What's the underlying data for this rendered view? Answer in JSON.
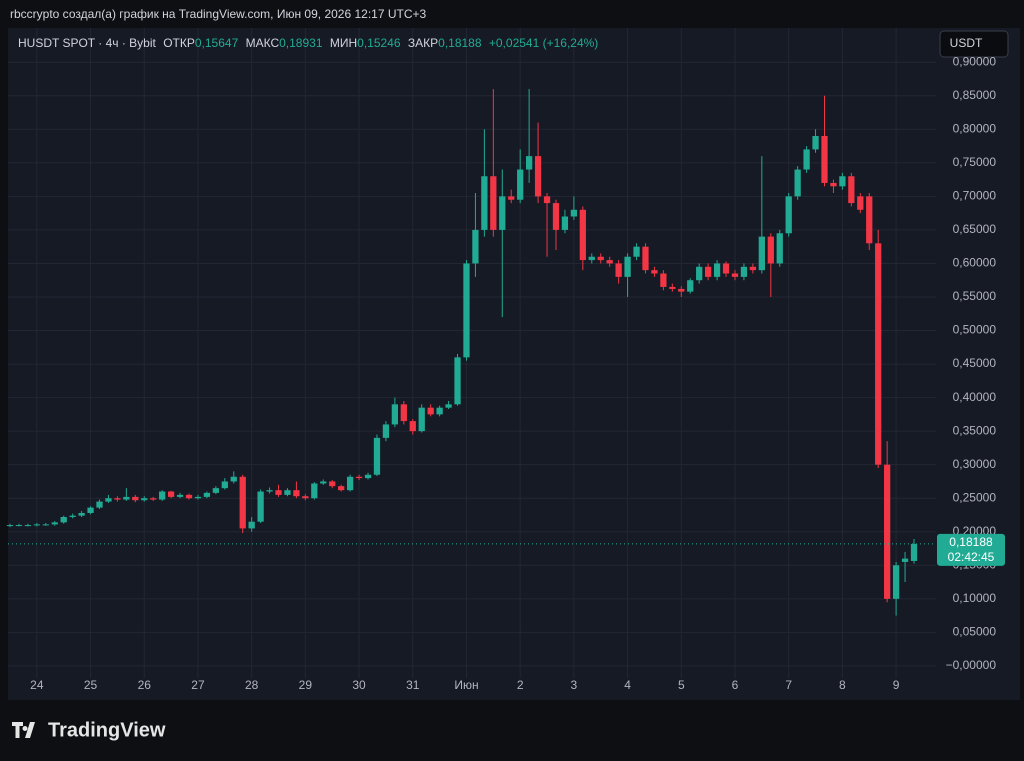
{
  "header": {
    "author_line": "rbccrypto создал(а) график на TradingView.com, Июн 09, 2026 12:17 UTC+3",
    "symbol": "HUSDT SPOT · 4ч · Bybit",
    "open_label": "ОТКР",
    "open_value": "0,15647",
    "high_label": "МАКС",
    "high_value": "0,18931",
    "low_label": "МИН",
    "low_value": "0,15246",
    "close_label": "ЗАКР",
    "close_value": "0,18188",
    "change": "+0,02541 (+16,24%)",
    "currency": "USDT"
  },
  "footer": {
    "logo": "TradingView"
  },
  "chart_data": {
    "type": "candlestick",
    "up_color": "#22ab94",
    "down_color": "#f23645",
    "grid": true,
    "categories": [
      null,
      null,
      null,
      "24",
      null,
      null,
      null,
      null,
      null,
      "25",
      null,
      null,
      null,
      null,
      null,
      "26",
      null,
      null,
      null,
      null,
      null,
      "27",
      null,
      null,
      null,
      null,
      null,
      "28",
      null,
      null,
      null,
      null,
      null,
      "29",
      null,
      null,
      null,
      null,
      null,
      "30",
      null,
      null,
      null,
      null,
      null,
      "31",
      null,
      null,
      null,
      null,
      null,
      "Июн",
      null,
      null,
      null,
      null,
      null,
      "2",
      null,
      null,
      null,
      null,
      null,
      "3",
      null,
      null,
      null,
      null,
      null,
      "4",
      null,
      null,
      null,
      null,
      null,
      "5",
      null,
      null,
      null,
      null,
      null,
      "6",
      null,
      null,
      null,
      null,
      null,
      "7",
      null,
      null,
      null,
      null,
      null,
      "8",
      null,
      null,
      null,
      null,
      null,
      "9",
      null,
      null
    ],
    "open": [
      0.209,
      0.21,
      0.21,
      0.21,
      0.211,
      0.211,
      0.214,
      0.222,
      0.224,
      0.228,
      0.236,
      0.245,
      0.25,
      0.248,
      0.252,
      0.247,
      0.25,
      0.248,
      0.26,
      0.252,
      0.255,
      0.25,
      0.252,
      0.258,
      0.265,
      0.275,
      0.282,
      0.205,
      0.215,
      0.26,
      0.262,
      0.255,
      0.262,
      0.253,
      0.25,
      0.272,
      0.275,
      0.268,
      0.262,
      0.282,
      0.28,
      0.285,
      0.34,
      0.36,
      0.39,
      0.365,
      0.35,
      0.385,
      0.375,
      0.385,
      0.39,
      0.46,
      0.6,
      0.65,
      0.73,
      0.65,
      0.7,
      0.695,
      0.74,
      0.76,
      0.7,
      0.69,
      0.65,
      0.67,
      0.68,
      0.605,
      0.61,
      0.605,
      0.6,
      0.58,
      0.61,
      0.625,
      0.59,
      0.585,
      0.565,
      0.562,
      0.558,
      0.575,
      0.595,
      0.58,
      0.6,
      0.585,
      0.58,
      0.595,
      0.59,
      0.64,
      0.6,
      0.645,
      0.7,
      0.74,
      0.77,
      0.79,
      0.72,
      0.715,
      0.73,
      0.7,
      0.7,
      0.63,
      0.3,
      0.1,
      0.155,
      0.15647
    ],
    "high": [
      0.212,
      0.212,
      0.212,
      0.213,
      0.213,
      0.216,
      0.224,
      0.227,
      0.231,
      0.238,
      0.248,
      0.255,
      0.253,
      0.265,
      0.255,
      0.253,
      0.252,
      0.262,
      0.261,
      0.258,
      0.257,
      0.255,
      0.26,
      0.268,
      0.28,
      0.29,
      0.285,
      0.222,
      0.263,
      0.266,
      0.27,
      0.265,
      0.275,
      0.256,
      0.274,
      0.278,
      0.277,
      0.27,
      0.285,
      0.285,
      0.288,
      0.345,
      0.365,
      0.4,
      0.395,
      0.368,
      0.39,
      0.39,
      0.388,
      0.395,
      0.465,
      0.605,
      0.705,
      0.8,
      0.86,
      0.74,
      0.71,
      0.77,
      0.86,
      0.81,
      0.705,
      0.695,
      0.68,
      0.7,
      0.685,
      0.615,
      0.615,
      0.61,
      0.605,
      0.615,
      0.63,
      0.63,
      0.595,
      0.59,
      0.57,
      0.566,
      0.578,
      0.6,
      0.6,
      0.605,
      0.603,
      0.59,
      0.6,
      0.6,
      0.76,
      0.645,
      0.65,
      0.705,
      0.745,
      0.775,
      0.8,
      0.85,
      0.725,
      0.735,
      0.735,
      0.705,
      0.705,
      0.65,
      0.335,
      0.155,
      0.17,
      0.18931
    ],
    "low": [
      0.207,
      0.208,
      0.208,
      0.208,
      0.209,
      0.209,
      0.212,
      0.22,
      0.222,
      0.226,
      0.234,
      0.243,
      0.245,
      0.246,
      0.244,
      0.245,
      0.246,
      0.246,
      0.25,
      0.25,
      0.248,
      0.248,
      0.25,
      0.256,
      0.263,
      0.272,
      0.198,
      0.2,
      0.213,
      0.257,
      0.252,
      0.253,
      0.25,
      0.247,
      0.248,
      0.27,
      0.265,
      0.26,
      0.26,
      0.277,
      0.278,
      0.283,
      0.335,
      0.356,
      0.36,
      0.345,
      0.348,
      0.372,
      0.372,
      0.383,
      0.388,
      0.455,
      0.58,
      0.64,
      0.64,
      0.52,
      0.69,
      0.69,
      0.72,
      0.69,
      0.61,
      0.62,
      0.645,
      0.665,
      0.59,
      0.6,
      0.6,
      0.595,
      0.57,
      0.55,
      0.605,
      0.585,
      0.58,
      0.56,
      0.558,
      0.55,
      0.555,
      0.57,
      0.575,
      0.575,
      0.58,
      0.575,
      0.575,
      0.585,
      0.585,
      0.55,
      0.595,
      0.64,
      0.695,
      0.735,
      0.765,
      0.715,
      0.705,
      0.71,
      0.685,
      0.675,
      0.62,
      0.295,
      0.095,
      0.075,
      0.125,
      0.15246
    ],
    "close": [
      0.21,
      0.21,
      0.21,
      0.211,
      0.211,
      0.214,
      0.222,
      0.224,
      0.228,
      0.236,
      0.245,
      0.25,
      0.248,
      0.252,
      0.247,
      0.25,
      0.248,
      0.26,
      0.252,
      0.255,
      0.25,
      0.252,
      0.258,
      0.265,
      0.275,
      0.282,
      0.205,
      0.215,
      0.26,
      0.262,
      0.255,
      0.262,
      0.253,
      0.25,
      0.272,
      0.275,
      0.268,
      0.262,
      0.282,
      0.28,
      0.285,
      0.34,
      0.36,
      0.39,
      0.365,
      0.35,
      0.385,
      0.375,
      0.385,
      0.39,
      0.46,
      0.6,
      0.65,
      0.73,
      0.65,
      0.7,
      0.695,
      0.74,
      0.76,
      0.7,
      0.69,
      0.65,
      0.67,
      0.68,
      0.605,
      0.61,
      0.605,
      0.6,
      0.58,
      0.61,
      0.625,
      0.59,
      0.585,
      0.565,
      0.562,
      0.558,
      0.575,
      0.595,
      0.58,
      0.6,
      0.585,
      0.58,
      0.595,
      0.59,
      0.64,
      0.6,
      0.645,
      0.7,
      0.74,
      0.77,
      0.79,
      0.72,
      0.715,
      0.73,
      0.69,
      0.68,
      0.63,
      0.3,
      0.1,
      0.15,
      0.16,
      0.18188
    ],
    "last_price": {
      "value": 0.18188,
      "label": "0,18188"
    },
    "countdown": "02:42:45",
    "ylim": [
      -0.018,
      0.951
    ],
    "yticks": [
      {
        "value": 0,
        "label": "−0,00000"
      },
      {
        "value": 0.05,
        "label": "0,05000"
      },
      {
        "value": 0.1,
        "label": "0,10000"
      },
      {
        "value": 0.15,
        "label": "0,15000"
      },
      {
        "value": 0.2,
        "label": "0,20000"
      },
      {
        "value": 0.25,
        "label": "0,25000"
      },
      {
        "value": 0.3,
        "label": "0,30000"
      },
      {
        "value": 0.35,
        "label": "0,35000"
      },
      {
        "value": 0.4,
        "label": "0,40000"
      },
      {
        "value": 0.45,
        "label": "0,45000"
      },
      {
        "value": 0.5,
        "label": "0,50000"
      },
      {
        "value": 0.55,
        "label": "0,55000"
      },
      {
        "value": 0.6,
        "label": "0,60000"
      },
      {
        "value": 0.65,
        "label": "0,65000"
      },
      {
        "value": 0.7,
        "label": "0,70000"
      },
      {
        "value": 0.75,
        "label": "0,75000"
      },
      {
        "value": 0.8,
        "label": "0,80000"
      },
      {
        "value": 0.85,
        "label": "0,85000"
      },
      {
        "value": 0.9,
        "label": "0,90000"
      }
    ]
  }
}
